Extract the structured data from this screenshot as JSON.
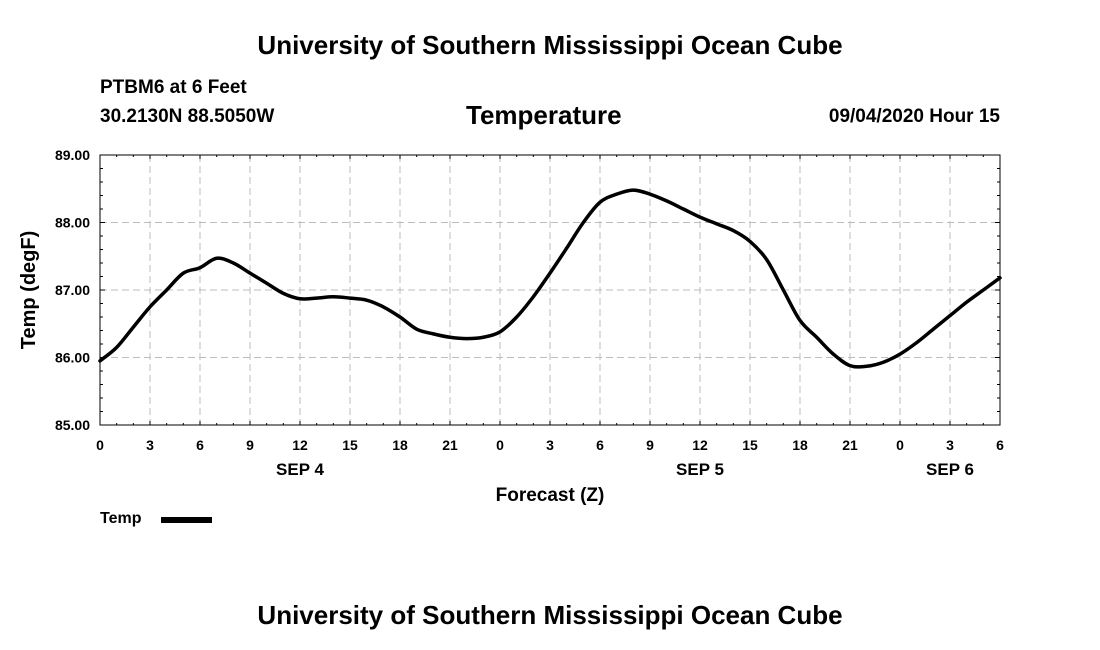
{
  "header": {
    "title": "University of Southern Mississippi Ocean Cube",
    "station": "PTBM6 at 6 Feet",
    "coordinates": "30.2130N 88.5050W",
    "parameter": "Temperature",
    "datestamp": "09/04/2020 Hour 15"
  },
  "footer": {
    "title": "University of Southern Mississippi Ocean Cube"
  },
  "legend": {
    "label": "Temp"
  },
  "chart_data": {
    "type": "line",
    "title": "Temperature",
    "xlabel": "Forecast (Z)",
    "ylabel": "Temp (degF)",
    "xlim": [
      0,
      54
    ],
    "ylim": [
      85.0,
      89.0
    ],
    "y_ticks": [
      "85.00",
      "86.00",
      "87.00",
      "88.00",
      "89.00"
    ],
    "x_ticks": [
      {
        "pos": 0,
        "label": "0"
      },
      {
        "pos": 3,
        "label": "3"
      },
      {
        "pos": 6,
        "label": "6"
      },
      {
        "pos": 9,
        "label": "9"
      },
      {
        "pos": 12,
        "label": "12"
      },
      {
        "pos": 15,
        "label": "15"
      },
      {
        "pos": 18,
        "label": "18"
      },
      {
        "pos": 21,
        "label": "21"
      },
      {
        "pos": 24,
        "label": "0"
      },
      {
        "pos": 27,
        "label": "3"
      },
      {
        "pos": 30,
        "label": "6"
      },
      {
        "pos": 33,
        "label": "9"
      },
      {
        "pos": 36,
        "label": "12"
      },
      {
        "pos": 39,
        "label": "15"
      },
      {
        "pos": 42,
        "label": "18"
      },
      {
        "pos": 45,
        "label": "21"
      },
      {
        "pos": 48,
        "label": "0"
      },
      {
        "pos": 51,
        "label": "3"
      },
      {
        "pos": 54,
        "label": "6"
      }
    ],
    "date_labels": [
      {
        "pos": 12,
        "label": "SEP 4"
      },
      {
        "pos": 36,
        "label": "SEP 5"
      },
      {
        "pos": 51,
        "label": "SEP 6"
      }
    ],
    "grid": true,
    "series": [
      {
        "name": "Temp",
        "color": "#000000",
        "x": [
          0,
          1,
          2,
          3,
          4,
          5,
          6,
          7,
          8,
          9,
          10,
          11,
          12,
          13,
          14,
          15,
          16,
          17,
          18,
          19,
          20,
          21,
          22,
          23,
          24,
          25,
          26,
          27,
          28,
          29,
          30,
          31,
          32,
          33,
          34,
          35,
          36,
          37,
          38,
          39,
          40,
          41,
          42,
          43,
          44,
          45,
          46,
          47,
          48,
          49,
          50,
          51,
          52,
          53,
          54
        ],
        "y": [
          85.95,
          86.15,
          86.45,
          86.75,
          87.0,
          87.25,
          87.33,
          87.47,
          87.4,
          87.25,
          87.1,
          86.95,
          86.87,
          86.88,
          86.9,
          86.88,
          86.85,
          86.75,
          86.6,
          86.42,
          86.35,
          86.3,
          86.28,
          86.3,
          86.38,
          86.6,
          86.9,
          87.25,
          87.62,
          88.0,
          88.3,
          88.42,
          88.48,
          88.42,
          88.32,
          88.2,
          88.08,
          87.98,
          87.88,
          87.72,
          87.45,
          87.0,
          86.55,
          86.3,
          86.05,
          85.88,
          85.87,
          85.93,
          86.05,
          86.22,
          86.42,
          86.62,
          86.82,
          87.0,
          87.18
        ]
      }
    ]
  }
}
